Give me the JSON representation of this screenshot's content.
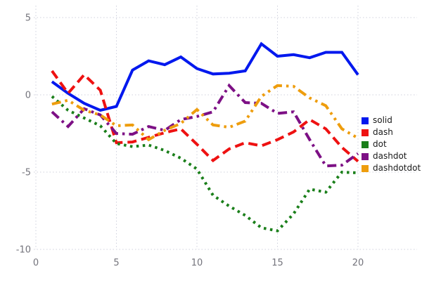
{
  "chart_data": {
    "type": "line",
    "title": "",
    "xlabel": "",
    "ylabel": "",
    "xlim": [
      0,
      20.5
    ],
    "ylim": [
      -10,
      5
    ],
    "grid": true,
    "legend_position": "right-middle",
    "xticks": [
      0,
      5,
      10,
      15,
      20
    ],
    "xtick_labels": [
      "0",
      "5",
      "10",
      "15",
      "20"
    ],
    "yticks": [
      5,
      0,
      -5,
      -10
    ],
    "ytick_labels": [
      "5",
      "0",
      "-5",
      "-10"
    ],
    "x": [
      1,
      2,
      3,
      4,
      5,
      6,
      7,
      8,
      9,
      10,
      11,
      12,
      13,
      14,
      15,
      16,
      17,
      18,
      19,
      20
    ],
    "series": [
      {
        "name": "solid",
        "dash": "solid",
        "color": "#0018ee",
        "values": [
          0.85,
          0.1,
          -0.55,
          -1.0,
          -0.75,
          1.6,
          2.2,
          1.95,
          2.45,
          1.7,
          1.35,
          1.4,
          1.55,
          3.3,
          2.5,
          2.6,
          2.4,
          2.75,
          2.75,
          1.3
        ]
      },
      {
        "name": "dash",
        "dash": "dash",
        "color": "#ee1111",
        "values": [
          1.55,
          0.1,
          1.3,
          0.3,
          -3.1,
          -3.05,
          -2.75,
          -2.45,
          -2.2,
          -3.2,
          -4.25,
          -3.5,
          -3.1,
          -3.3,
          -2.9,
          -2.4,
          -1.6,
          -2.2,
          -3.4,
          -4.3
        ]
      },
      {
        "name": "dot",
        "dash": "dot",
        "color": "#1a7f1a",
        "values": [
          -0.1,
          -1.0,
          -1.5,
          -2.0,
          -3.15,
          -3.35,
          -3.25,
          -3.6,
          -4.1,
          -4.8,
          -6.5,
          -7.2,
          -7.8,
          -8.6,
          -8.8,
          -7.7,
          -6.1,
          -6.3,
          -5.0,
          -5.05
        ]
      },
      {
        "name": "dashdot",
        "dash": "dashdot",
        "color": "#7d1085",
        "values": [
          -1.1,
          -2.05,
          -0.9,
          -1.3,
          -2.5,
          -2.55,
          -2.05,
          -2.3,
          -1.6,
          -1.4,
          -1.1,
          0.6,
          -0.5,
          -0.55,
          -1.2,
          -1.1,
          -2.9,
          -4.6,
          -4.55,
          -3.8
        ]
      },
      {
        "name": "dashdotdot",
        "dash": "dashdotdot",
        "color": "#ee9d0d",
        "values": [
          -0.6,
          -0.35,
          -1.0,
          -1.3,
          -2.0,
          -1.95,
          -2.9,
          -2.3,
          -1.85,
          -0.95,
          -1.95,
          -2.1,
          -1.7,
          -0.1,
          0.6,
          0.55,
          -0.2,
          -0.7,
          -2.2,
          -2.8
        ]
      }
    ],
    "colors": {
      "grid": "#cfd0dd",
      "tick_label": "#74747c",
      "legend_text": "#1a1a1a",
      "background": "#ffffff"
    }
  }
}
